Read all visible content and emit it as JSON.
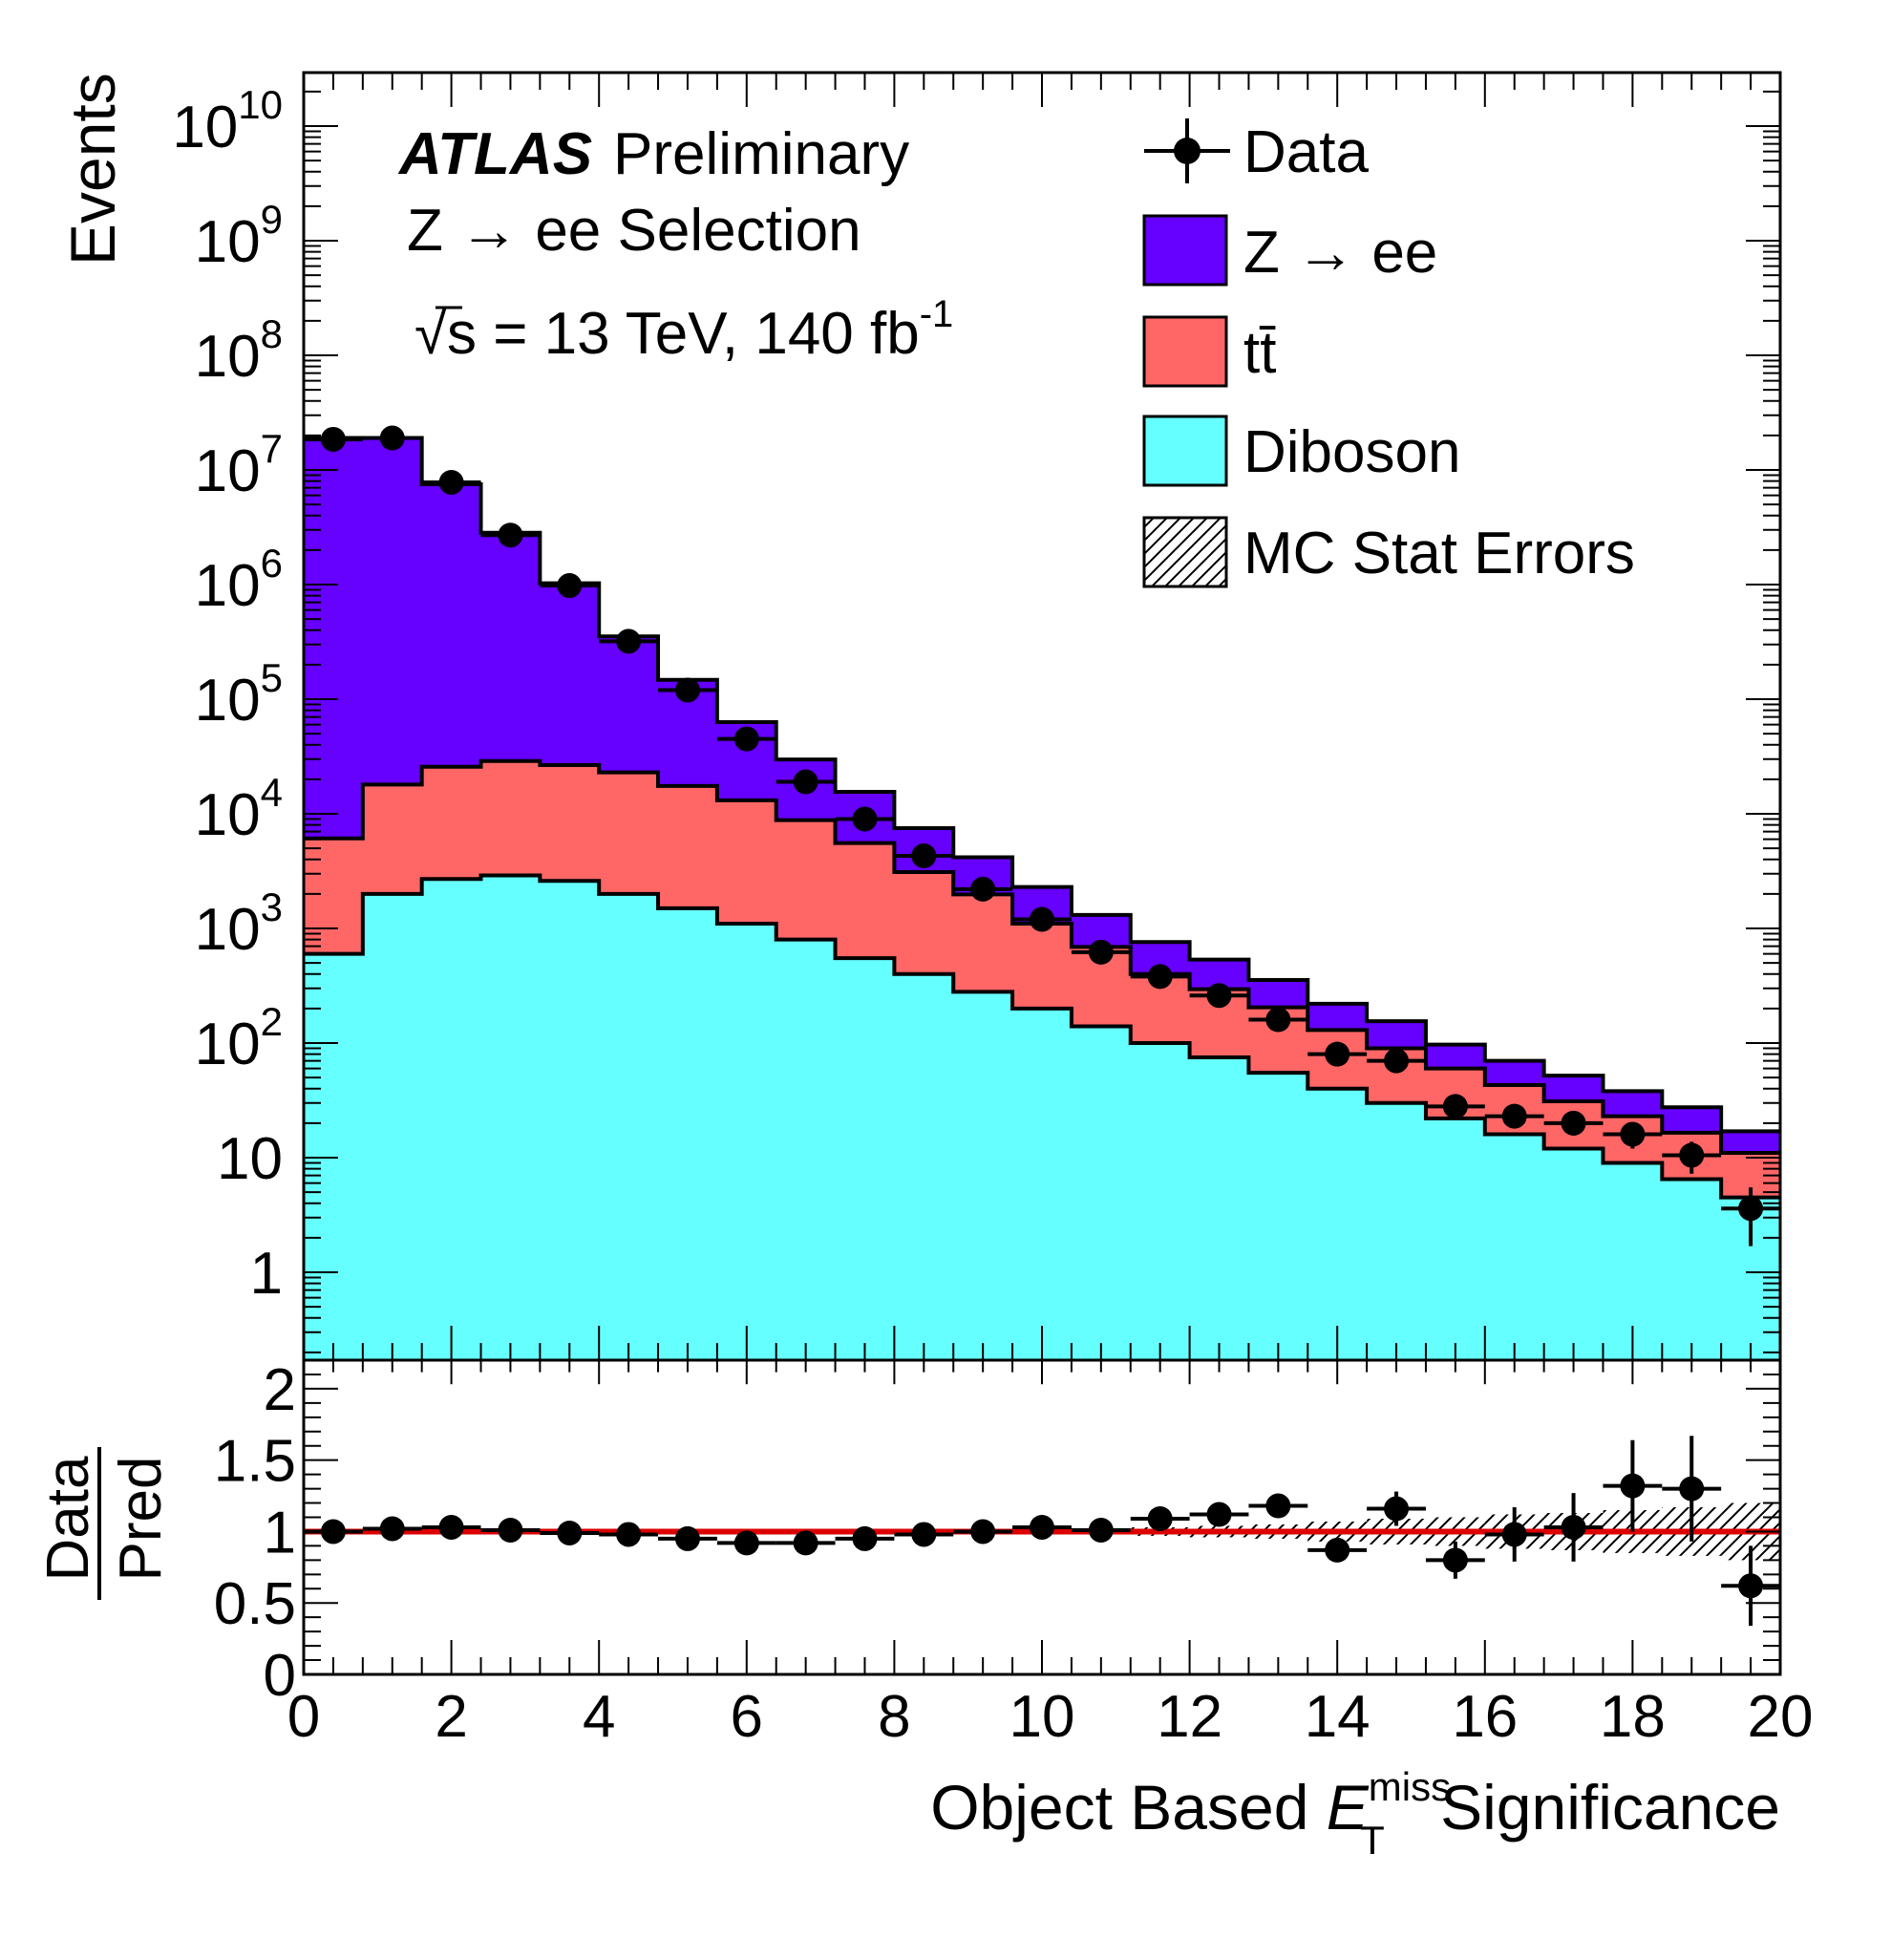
{
  "header": {
    "atlas_bold": "ATLAS",
    "atlas_rest": "Preliminary",
    "selection": "Z → ee Selection",
    "energy_prefix": "√s = 13 TeV, 140 fb",
    "energy_sup": "-1"
  },
  "legend": {
    "data_label": "Data",
    "zee_label": "Z → ee",
    "ttbar_label": "tt̄",
    "diboson_label": "Diboson",
    "mcstat_label": "MC Stat Errors"
  },
  "axes": {
    "ylabel_top": "Events",
    "ylabel_ratio_num": "Data",
    "ylabel_ratio_den": "Pred",
    "xlabel_pre": "Object Based ",
    "xlabel_E": "E",
    "xlabel_sub": "T",
    "xlabel_sup": "miss",
    "xlabel_post": " Significance"
  },
  "chart_data": [
    {
      "type": "area",
      "subtype": "stacked histogram",
      "y_scale": "log",
      "ylim": [
        0.2,
        30000000000
      ],
      "xlim": [
        0,
        20
      ],
      "ylabel": "Events",
      "xlabel": "Object Based E_T^miss Significance",
      "bin_edges": [
        0,
        0.8,
        1.6,
        2.4,
        3.2,
        4.0,
        4.8,
        5.6,
        6.4,
        7.2,
        8.0,
        8.8,
        9.6,
        10.4,
        11.2,
        12.0,
        12.8,
        13.6,
        14.4,
        15.2,
        16.0,
        16.8,
        17.6,
        18.4,
        19.2,
        20.0
      ],
      "y_ticks": [
        1,
        10,
        100,
        1000,
        10000,
        100000,
        1000000,
        10000000,
        100000000,
        1000000000,
        10000000000
      ],
      "y_tick_labels": [
        {
          "base": "1",
          "exp": ""
        },
        {
          "base": "10",
          "exp": ""
        },
        {
          "base": "10",
          "exp": "2"
        },
        {
          "base": "10",
          "exp": "3"
        },
        {
          "base": "10",
          "exp": "4"
        },
        {
          "base": "10",
          "exp": "5"
        },
        {
          "base": "10",
          "exp": "6"
        },
        {
          "base": "10",
          "exp": "7"
        },
        {
          "base": "10",
          "exp": "8"
        },
        {
          "base": "10",
          "exp": "9"
        },
        {
          "base": "10",
          "exp": "10"
        }
      ],
      "series": [
        {
          "name": "Diboson",
          "color": "#66ffff",
          "values": [
            600,
            2000,
            2700,
            2900,
            2600,
            2000,
            1500,
            1100,
            800,
            550,
            400,
            280,
            200,
            140,
            100,
            75,
            55,
            40,
            30,
            22,
            16,
            12,
            9,
            6.5,
            4.5
          ]
        },
        {
          "name": "tt̄",
          "color": "#ff6666",
          "values": [
            5500,
            16000,
            23000,
            26000,
            24000,
            21000,
            16000,
            12000,
            8000,
            5000,
            2700,
            1700,
            900,
            550,
            300,
            220,
            150,
            90,
            60,
            38,
            27,
            19,
            14,
            10,
            6.5
          ]
        },
        {
          "name": "Z → ee",
          "color": "#6600ff",
          "values": [
            19000000,
            19000000,
            7500000,
            2800000,
            1000000,
            330000,
            130000,
            50000,
            21000,
            10000,
            4400,
            2200,
            1200,
            620,
            360,
            240,
            150,
            90,
            65,
            37,
            27,
            21,
            15,
            11,
            6
          ]
        }
      ],
      "data": {
        "name": "Data",
        "values": [
          18500000,
          19000000,
          7800000,
          2700000,
          980000,
          320000,
          120000,
          45000,
          19000,
          9000,
          4300,
          2200,
          1200,
          620,
          380,
          260,
          160,
          80,
          70,
          28,
          23,
          20,
          16,
          10.5,
          3.6
        ],
        "y_err_rel": [
          0,
          0,
          0,
          0,
          0,
          0,
          0,
          0,
          0,
          0,
          0,
          0,
          0,
          0,
          0,
          0,
          0.08,
          0.11,
          0.12,
          0.19,
          0.21,
          0.22,
          0.25,
          0.31,
          0.53
        ]
      }
    },
    {
      "type": "scatter",
      "subtype": "ratio",
      "ylabel": "Data / Pred",
      "xlabel": "Object Based E_T^miss Significance",
      "xlim": [
        0,
        20
      ],
      "ylim": [
        0,
        2.2
      ],
      "y_ticks": [
        0,
        0.5,
        1,
        1.5,
        2
      ],
      "y_tick_labels": [
        "0",
        "0.5",
        "1",
        "1.5",
        "2"
      ],
      "x_ticks": [
        0,
        2,
        4,
        6,
        8,
        10,
        12,
        14,
        16,
        18,
        20
      ],
      "x_tick_labels": [
        "0",
        "2",
        "4",
        "6",
        "8",
        "10",
        "12",
        "14",
        "16",
        "18",
        "20"
      ],
      "reference_line": {
        "y": 1,
        "color": "#dd0000"
      },
      "bin_centers": [
        0.4,
        1.2,
        2.0,
        2.8,
        3.6,
        4.4,
        5.2,
        6.0,
        6.8,
        7.6,
        8.4,
        9.2,
        10.0,
        10.8,
        11.6,
        12.4,
        13.2,
        14.0,
        14.8,
        15.6,
        16.4,
        17.2,
        18.0,
        18.8,
        19.6
      ],
      "values": [
        1.0,
        1.02,
        1.03,
        1.01,
        0.99,
        0.98,
        0.95,
        0.92,
        0.92,
        0.95,
        0.98,
        1.0,
        1.03,
        1.01,
        1.09,
        1.12,
        1.18,
        0.87,
        1.16,
        0.8,
        0.98,
        1.03,
        1.32,
        1.3,
        0.62
      ],
      "y_err": [
        0,
        0,
        0,
        0,
        0,
        0,
        0,
        0,
        0,
        0,
        0,
        0,
        0,
        0,
        0,
        0,
        0.05,
        0.06,
        0.12,
        0.13,
        0.19,
        0.24,
        0.32,
        0.37,
        0.28
      ],
      "mc_stat_err": [
        0.005,
        0.005,
        0.005,
        0.005,
        0.005,
        0.005,
        0.005,
        0.005,
        0.005,
        0.005,
        0.005,
        0.01,
        0.02,
        0.02,
        0.03,
        0.04,
        0.05,
        0.07,
        0.09,
        0.1,
        0.12,
        0.13,
        0.15,
        0.17,
        0.2
      ]
    }
  ]
}
